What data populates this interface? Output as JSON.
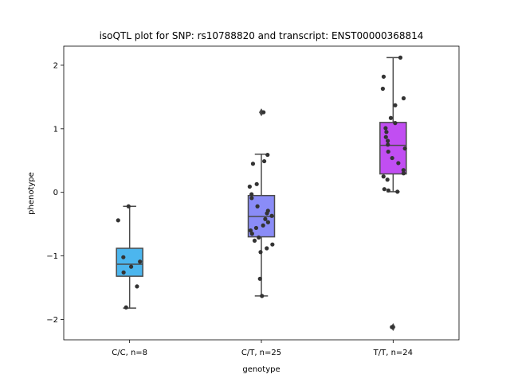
{
  "chart_data": {
    "type": "box",
    "title": "isoQTL plot for SNP: rs10788820 and transcript: ENST00000368814",
    "xlabel": "genotype",
    "ylabel": "phenotype",
    "ylim": [
      -2.32,
      2.3
    ],
    "yticks": [
      -2,
      -1,
      0,
      1,
      2
    ],
    "yticks_text": [
      "−2",
      "−1",
      "0",
      "1",
      "2"
    ],
    "grid": false,
    "categories": [
      "C/C, n=8",
      "C/T, n=25",
      "T/T, n=24"
    ],
    "colors": [
      "#4cb6ee",
      "#8a8cf7",
      "#c14ef2"
    ],
    "boxes": [
      {
        "category": "C/C, n=8",
        "whisker_low": -1.82,
        "q1": -1.32,
        "median": -1.13,
        "q3": -0.88,
        "whisker_high": -0.22,
        "outliers": []
      },
      {
        "category": "C/T, n=25",
        "whisker_low": -1.63,
        "q1": -0.7,
        "median": -0.38,
        "q3": -0.05,
        "whisker_high": 0.6,
        "outliers": [
          1.26
        ]
      },
      {
        "category": "T/T, n=24",
        "whisker_low": 0.01,
        "q1": 0.29,
        "median": 0.74,
        "q3": 1.1,
        "whisker_high": 2.12,
        "outliers": [
          -2.12
        ]
      }
    ],
    "points": [
      {
        "category": "C/C, n=8",
        "values": [
          -0.22,
          -0.44,
          -1.02,
          -1.09,
          -1.17,
          -1.26,
          -1.48,
          -1.81
        ]
      },
      {
        "category": "C/T, n=25",
        "values": [
          1.26,
          0.59,
          0.49,
          0.45,
          0.13,
          0.09,
          -0.03,
          -0.09,
          -0.22,
          -0.29,
          -0.33,
          -0.37,
          -0.42,
          -0.47,
          -0.52,
          -0.56,
          -0.6,
          -0.65,
          -0.71,
          -0.76,
          -0.82,
          -0.88,
          -0.94,
          -1.36,
          -1.63
        ]
      },
      {
        "category": "T/T, n=24",
        "values": [
          2.12,
          1.82,
          1.63,
          1.48,
          1.37,
          1.17,
          1.09,
          1.01,
          0.95,
          0.87,
          0.81,
          0.75,
          0.69,
          0.64,
          0.54,
          0.46,
          0.35,
          0.3,
          0.25,
          0.2,
          0.05,
          0.03,
          0.01,
          -2.12
        ]
      }
    ]
  }
}
